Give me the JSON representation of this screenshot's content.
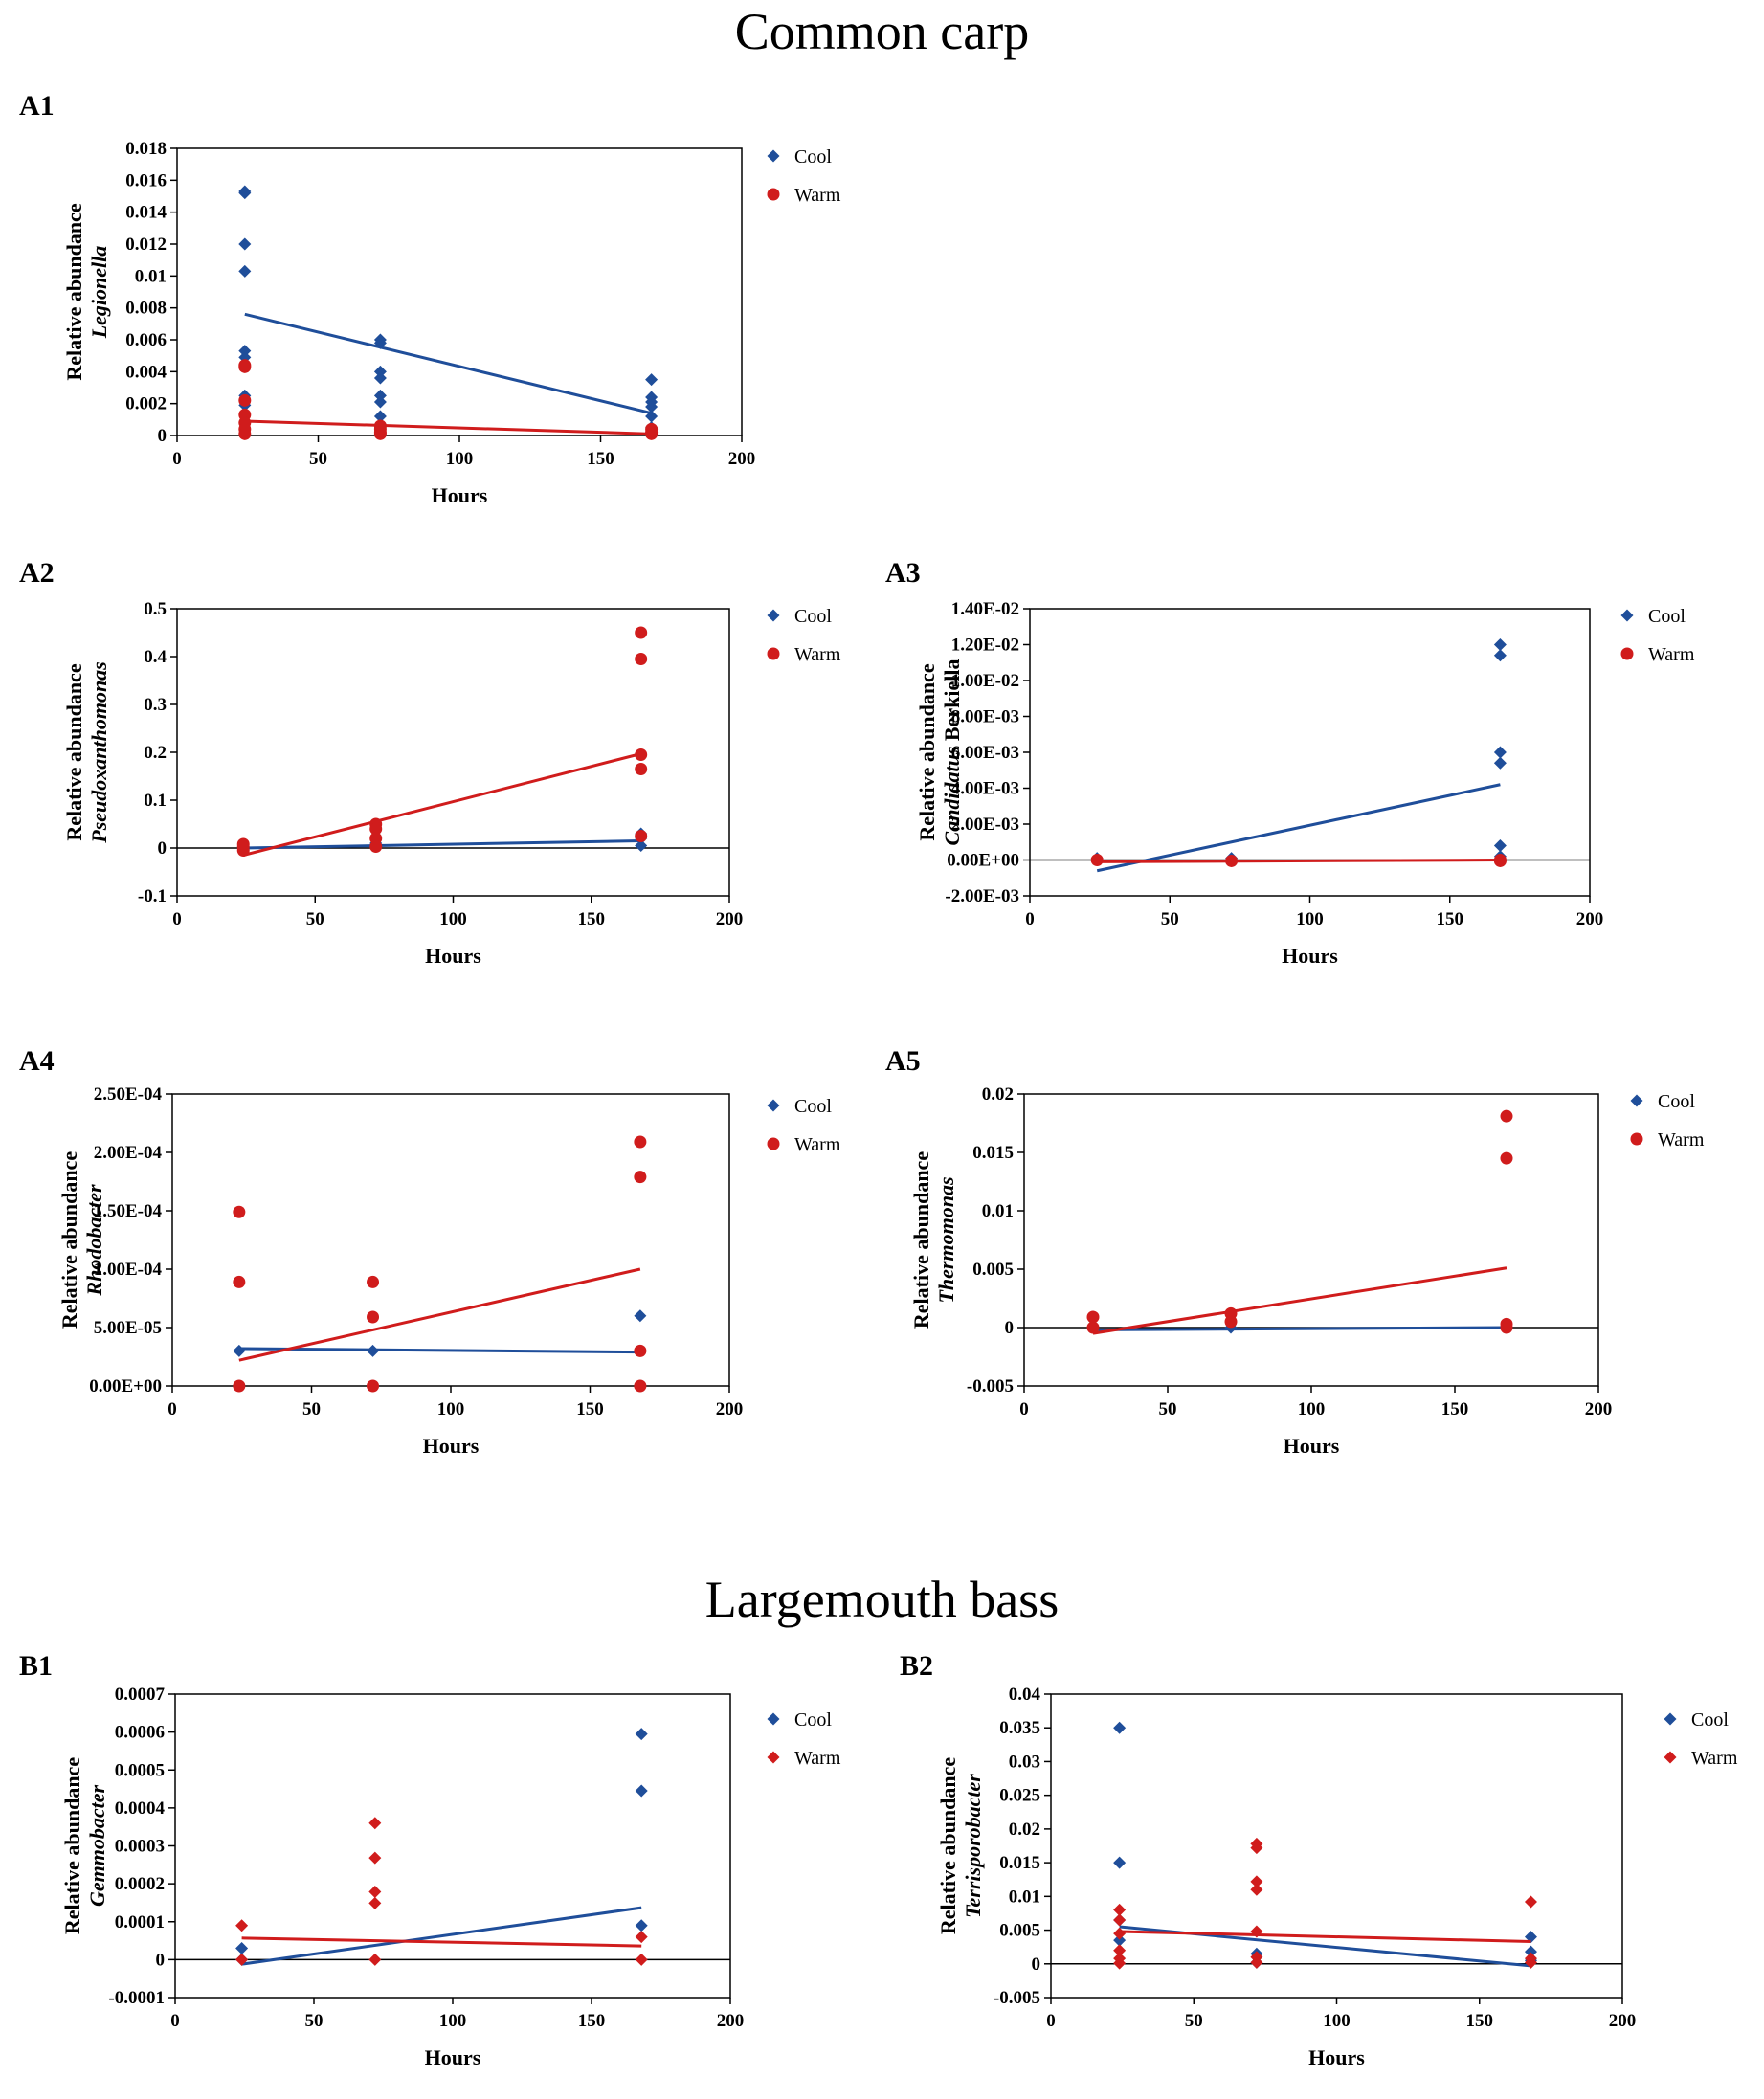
{
  "sections": {
    "carp_title": "Common carp",
    "bass_title": "Largemouth bass"
  },
  "colors": {
    "cool": "#1f4e9a",
    "warm": "#d01c1c",
    "axis": "#000000"
  },
  "chart_data": [
    {
      "id": "A1",
      "label": "A1",
      "type": "scatter",
      "title": "",
      "xlabel": "Hours",
      "ylabel_line1": "Relative abundance",
      "ylabel_line2": "Legionella",
      "xlim": [
        0,
        200
      ],
      "xticks": [
        0,
        50,
        100,
        150,
        200
      ],
      "xtick_labels": [
        "0",
        "50",
        "100",
        "150",
        "200"
      ],
      "ylim": [
        0,
        0.018
      ],
      "yticks": [
        0,
        0.002,
        0.004,
        0.006,
        0.008,
        0.01,
        0.012,
        0.014,
        0.016,
        0.018
      ],
      "ytick_labels": [
        "0",
        "0.002",
        "0.004",
        "0.006",
        "0.008",
        "0.01",
        "0.012",
        "0.014",
        "0.016",
        "0.018"
      ],
      "legend": [
        "Cool",
        "Warm"
      ],
      "legend_position": "outside-right",
      "series": [
        {
          "name": "Cool",
          "marker": "diamond",
          "points": [
            [
              24,
              0.0152
            ],
            [
              24,
              0.0153
            ],
            [
              24,
              0.012
            ],
            [
              24,
              0.0103
            ],
            [
              24,
              0.0053
            ],
            [
              24,
              0.0049
            ],
            [
              24,
              0.0025
            ],
            [
              24,
              0.0019
            ],
            [
              72,
              0.006
            ],
            [
              72,
              0.0058
            ],
            [
              72,
              0.004
            ],
            [
              72,
              0.0036
            ],
            [
              72,
              0.0025
            ],
            [
              72,
              0.0021
            ],
            [
              72,
              0.0012
            ],
            [
              168,
              0.0035
            ],
            [
              168,
              0.0024
            ],
            [
              168,
              0.0021
            ],
            [
              168,
              0.0018
            ],
            [
              168,
              0.0012
            ],
            [
              168,
              0.0005
            ]
          ],
          "trend": [
            [
              24,
              0.0076
            ],
            [
              168,
              0.0014
            ]
          ]
        },
        {
          "name": "Warm",
          "marker": "circle",
          "points": [
            [
              24,
              0.0044
            ],
            [
              24,
              0.0043
            ],
            [
              24,
              0.0022
            ],
            [
              24,
              0.0013
            ],
            [
              24,
              0.0008
            ],
            [
              24,
              0.0004
            ],
            [
              24,
              0.0001
            ],
            [
              72,
              0.0006
            ],
            [
              72,
              0.0004
            ],
            [
              72,
              0.0002
            ],
            [
              72,
              0.0001
            ],
            [
              168,
              0.0004
            ],
            [
              168,
              0.0002
            ],
            [
              168,
              0.0001
            ]
          ],
          "trend": [
            [
              24,
              0.0009
            ],
            [
              168,
              0.0001
            ]
          ]
        }
      ]
    },
    {
      "id": "A2",
      "label": "A2",
      "type": "scatter",
      "xlabel": "Hours",
      "ylabel_line1": "Relative abundance",
      "ylabel_line2": "Pseudoxanthomonas",
      "xlim": [
        0,
        200
      ],
      "xticks": [
        0,
        50,
        100,
        150,
        200
      ],
      "xtick_labels": [
        "0",
        "50",
        "100",
        "150",
        "200"
      ],
      "ylim": [
        -0.1,
        0.5
      ],
      "yticks": [
        -0.1,
        0,
        0.1,
        0.2,
        0.3,
        0.4,
        0.5
      ],
      "ytick_labels": [
        "-0.1",
        "0",
        "0.1",
        "0.2",
        "0.3",
        "0.4",
        "0.5"
      ],
      "legend": [
        "Cool",
        "Warm"
      ],
      "legend_position": "outside-right",
      "series": [
        {
          "name": "Cool",
          "marker": "diamond",
          "points": [
            [
              24,
              0.003
            ],
            [
              24,
              0.001
            ],
            [
              72,
              0.01
            ],
            [
              72,
              0.005
            ],
            [
              168,
              0.03
            ],
            [
              168,
              0.02
            ],
            [
              168,
              0.005
            ]
          ],
          "trend": [
            [
              24,
              0.0
            ],
            [
              168,
              0.015
            ]
          ]
        },
        {
          "name": "Warm",
          "marker": "circle",
          "points": [
            [
              24,
              0.008
            ],
            [
              24,
              0.002
            ],
            [
              24,
              -0.005
            ],
            [
              72,
              0.05
            ],
            [
              72,
              0.04
            ],
            [
              72,
              0.02
            ],
            [
              72,
              0.003
            ],
            [
              168,
              0.45
            ],
            [
              168,
              0.395
            ],
            [
              168,
              0.195
            ],
            [
              168,
              0.165
            ],
            [
              168,
              0.025
            ]
          ],
          "trend": [
            [
              24,
              -0.015
            ],
            [
              168,
              0.197
            ]
          ]
        }
      ]
    },
    {
      "id": "A3",
      "label": "A3",
      "type": "scatter",
      "xlabel": "Hours",
      "ylabel_line1": "Relative abundance",
      "ylabel_line2": "Candidatus Berkiella",
      "xlim": [
        0,
        200
      ],
      "xticks": [
        0,
        50,
        100,
        150,
        200
      ],
      "xtick_labels": [
        "0",
        "50",
        "100",
        "150",
        "200"
      ],
      "ylim": [
        -0.002,
        0.014
      ],
      "yticks": [
        -0.002,
        0,
        0.002,
        0.004,
        0.006,
        0.008,
        0.01,
        0.012,
        0.014
      ],
      "ytick_labels": [
        "-2.00E-03",
        "0.00E+00",
        "2.00E-03",
        "4.00E-03",
        "6.00E-03",
        "8.00E-03",
        "1.00E-02",
        "1.20E-02",
        "1.40E-02"
      ],
      "legend": [
        "Cool",
        "Warm"
      ],
      "legend_position": "outside-right",
      "series": [
        {
          "name": "Cool",
          "marker": "diamond",
          "points": [
            [
              24,
              0.0001
            ],
            [
              24,
              0.0
            ],
            [
              72,
              0.0001
            ],
            [
              168,
              0.012
            ],
            [
              168,
              0.0114
            ],
            [
              168,
              0.006
            ],
            [
              168,
              0.0054
            ],
            [
              168,
              0.0008
            ],
            [
              168,
              0.0002
            ]
          ],
          "trend": [
            [
              24,
              -0.0006
            ],
            [
              168,
              0.0042
            ]
          ]
        },
        {
          "name": "Warm",
          "marker": "circle",
          "points": [
            [
              24,
              0.0
            ],
            [
              72,
              -5e-05
            ],
            [
              168,
              0.0
            ],
            [
              168,
              -5e-05
            ]
          ],
          "trend": [
            [
              24,
              -0.0001
            ],
            [
              168,
              0.0
            ]
          ]
        }
      ]
    },
    {
      "id": "A4",
      "label": "A4",
      "type": "scatter",
      "xlabel": "Hours",
      "ylabel_line1": "Relative abundance",
      "ylabel_line2": "Rhodobacter",
      "xlim": [
        0,
        200
      ],
      "xticks": [
        0,
        50,
        100,
        150,
        200
      ],
      "xtick_labels": [
        "0",
        "50",
        "100",
        "150",
        "200"
      ],
      "ylim": [
        0,
        0.00025
      ],
      "yticks": [
        0,
        5e-05,
        0.0001,
        0.00015,
        0.0002,
        0.00025
      ],
      "ytick_labels": [
        "0.00E+00",
        "5.00E-05",
        "1.00E-04",
        "1.50E-04",
        "2.00E-04",
        "2.50E-04"
      ],
      "legend": [
        "Cool",
        "Warm"
      ],
      "legend_position": "outside-right",
      "series": [
        {
          "name": "Cool",
          "marker": "diamond",
          "points": [
            [
              24,
              3e-05
            ],
            [
              72,
              3e-05
            ],
            [
              168,
              6e-05
            ],
            [
              168,
              3e-05
            ]
          ],
          "trend": [
            [
              24,
              3.2e-05
            ],
            [
              168,
              2.9e-05
            ]
          ]
        },
        {
          "name": "Warm",
          "marker": "circle",
          "points": [
            [
              24,
              0.000149
            ],
            [
              24,
              8.9e-05
            ],
            [
              24,
              0.0
            ],
            [
              72,
              8.9e-05
            ],
            [
              72,
              5.9e-05
            ],
            [
              72,
              0.0
            ],
            [
              168,
              0.000209
            ],
            [
              168,
              0.000179
            ],
            [
              168,
              3e-05
            ],
            [
              168,
              0.0
            ]
          ],
          "trend": [
            [
              24,
              2.2e-05
            ],
            [
              168,
              0.0001
            ]
          ]
        }
      ]
    },
    {
      "id": "A5",
      "label": "A5",
      "type": "scatter",
      "xlabel": "Hours",
      "ylabel_line1": "Relative abundance",
      "ylabel_line2": "Thermomonas",
      "xlim": [
        0,
        200
      ],
      "xticks": [
        0,
        50,
        100,
        150,
        200
      ],
      "xtick_labels": [
        "0",
        "50",
        "100",
        "150",
        "200"
      ],
      "ylim": [
        -0.005,
        0.02
      ],
      "yticks": [
        -0.005,
        0,
        0.005,
        0.01,
        0.015,
        0.02
      ],
      "ytick_labels": [
        "-0.005",
        "0",
        "0.005",
        "0.01",
        "0.015",
        "0.02"
      ],
      "legend": [
        "Cool",
        "Warm"
      ],
      "legend_position": "outside-right",
      "series": [
        {
          "name": "Cool",
          "marker": "diamond",
          "points": [
            [
              24,
              0.0
            ],
            [
              72,
              0.0
            ],
            [
              168,
              0.0
            ]
          ],
          "trend": [
            [
              24,
              -0.0002
            ],
            [
              168,
              0.0
            ]
          ]
        },
        {
          "name": "Warm",
          "marker": "circle",
          "points": [
            [
              24,
              0.0009
            ],
            [
              24,
              0.0
            ],
            [
              72,
              0.0012
            ],
            [
              72,
              0.0005
            ],
            [
              168,
              0.0181
            ],
            [
              168,
              0.0145
            ],
            [
              168,
              0.0003
            ],
            [
              168,
              0.0
            ]
          ],
          "trend": [
            [
              24,
              -0.0005
            ],
            [
              168,
              0.0051
            ]
          ]
        }
      ]
    },
    {
      "id": "B1",
      "label": "B1",
      "type": "scatter",
      "xlabel": "Hours",
      "ylabel_line1": "Relative abundance",
      "ylabel_line2": "Gemmobacter",
      "xlim": [
        0,
        200
      ],
      "xticks": [
        0,
        50,
        100,
        150,
        200
      ],
      "xtick_labels": [
        "0",
        "50",
        "100",
        "150",
        "200"
      ],
      "ylim": [
        -0.0001,
        0.0007
      ],
      "yticks": [
        -0.0001,
        0,
        0.0001,
        0.0002,
        0.0003,
        0.0004,
        0.0005,
        0.0006,
        0.0007
      ],
      "ytick_labels": [
        "-0.0001",
        "0",
        "0.0001",
        "0.0002",
        "0.0003",
        "0.0004",
        "0.0005",
        "0.0006",
        "0.0007"
      ],
      "legend": [
        "Cool",
        "Warm"
      ],
      "legend_position": "outside-right",
      "series": [
        {
          "name": "Cool",
          "marker": "diamond",
          "points": [
            [
              24,
              3e-05
            ],
            [
              24,
              0.0
            ],
            [
              168,
              0.000595
            ],
            [
              168,
              0.000445
            ],
            [
              168,
              9e-05
            ]
          ],
          "trend": [
            [
              24,
              -1.2e-05
            ],
            [
              168,
              0.000137
            ]
          ]
        },
        {
          "name": "Warm",
          "marker": "diamond",
          "points": [
            [
              24,
              9e-05
            ],
            [
              24,
              0.0
            ],
            [
              72,
              0.00036
            ],
            [
              72,
              0.000268
            ],
            [
              72,
              0.000179
            ],
            [
              72,
              0.000149
            ],
            [
              72,
              0.0
            ],
            [
              168,
              6e-05
            ],
            [
              168,
              0.0
            ]
          ],
          "trend": [
            [
              24,
              5.7e-05
            ],
            [
              168,
              3.6e-05
            ]
          ]
        }
      ]
    },
    {
      "id": "B2",
      "label": "B2",
      "type": "scatter",
      "xlabel": "Hours",
      "ylabel_line1": "Relative abundance",
      "ylabel_line2": "Terrisporobacter",
      "xlim": [
        0,
        200
      ],
      "xticks": [
        0,
        50,
        100,
        150,
        200
      ],
      "xtick_labels": [
        "0",
        "50",
        "100",
        "150",
        "200"
      ],
      "ylim": [
        -0.005,
        0.04
      ],
      "yticks": [
        -0.005,
        0,
        0.005,
        0.01,
        0.015,
        0.02,
        0.025,
        0.03,
        0.035,
        0.04
      ],
      "ytick_labels": [
        "-0.005",
        "0",
        "0.005",
        "0.01",
        "0.015",
        "0.02",
        "0.025",
        "0.03",
        "0.035",
        "0.04"
      ],
      "legend": [
        "Cool",
        "Warm"
      ],
      "legend_position": "outside-right",
      "series": [
        {
          "name": "Cool",
          "marker": "diamond",
          "points": [
            [
              24,
              0.035
            ],
            [
              24,
              0.015
            ],
            [
              24,
              0.0065
            ],
            [
              24,
              0.0035
            ],
            [
              72,
              0.0015
            ],
            [
              72,
              0.0002
            ],
            [
              168,
              0.004
            ],
            [
              168,
              0.0018
            ],
            [
              168,
              0.0005
            ]
          ],
          "trend": [
            [
              24,
              0.0055
            ],
            [
              168,
              -0.0003
            ]
          ]
        },
        {
          "name": "Warm",
          "marker": "diamond",
          "points": [
            [
              24,
              0.008
            ],
            [
              24,
              0.0065
            ],
            [
              24,
              0.0045
            ],
            [
              24,
              0.002
            ],
            [
              24,
              0.0008
            ],
            [
              24,
              0.0001
            ],
            [
              72,
              0.0178
            ],
            [
              72,
              0.0172
            ],
            [
              72,
              0.0122
            ],
            [
              72,
              0.011
            ],
            [
              72,
              0.0048
            ],
            [
              72,
              0.001
            ],
            [
              72,
              0.0002
            ],
            [
              168,
              0.0092
            ],
            [
              168,
              0.0008
            ],
            [
              168,
              0.0002
            ]
          ],
          "trend": [
            [
              24,
              0.0048
            ],
            [
              168,
              0.0033
            ]
          ]
        }
      ]
    }
  ]
}
